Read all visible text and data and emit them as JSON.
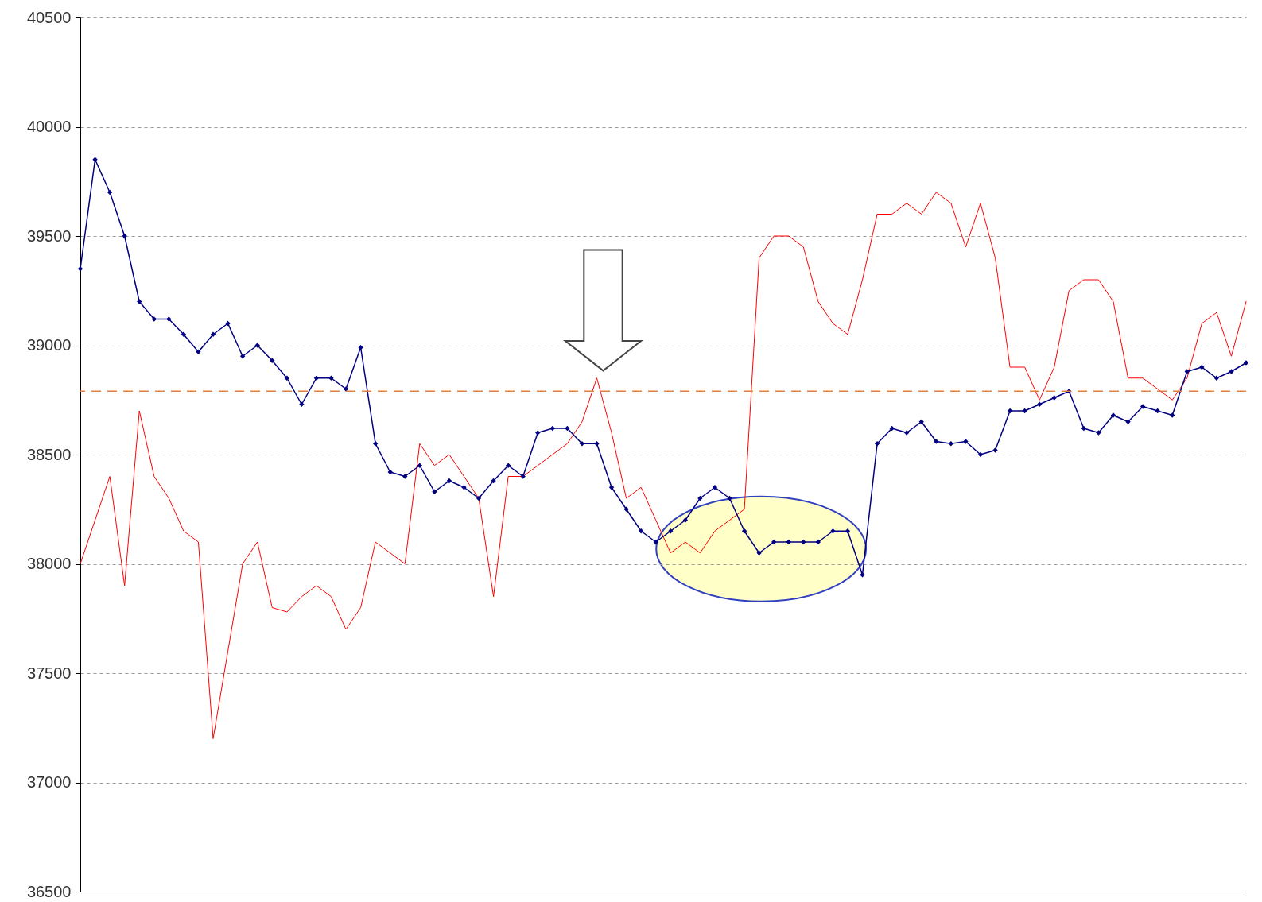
{
  "chart_data": {
    "type": "line",
    "categories": [
      null,
      null,
      null,
      null,
      null,
      null,
      null,
      null,
      null,
      null,
      null,
      null,
      null,
      null,
      null,
      null,
      null,
      null,
      null,
      null,
      null,
      null,
      null,
      null,
      null,
      null,
      null,
      null,
      null,
      null,
      null,
      null,
      null,
      null,
      null,
      null,
      null,
      null,
      null,
      null,
      null,
      null,
      null,
      null,
      null,
      null,
      null,
      null,
      null,
      null,
      null,
      null,
      null,
      null,
      null,
      null,
      null,
      null,
      null,
      null,
      null,
      null,
      null,
      null,
      null,
      null,
      null,
      null,
      null,
      null,
      null,
      null,
      null,
      null,
      null,
      null,
      null,
      null,
      null,
      null
    ],
    "series": [
      {
        "color": "#ff0000",
        "marker": "none",
        "values": [
          38000,
          38200,
          38400,
          37900,
          38700,
          38400,
          38300,
          38150,
          38100,
          37200,
          37600,
          38000,
          38100,
          37800,
          37780,
          37850,
          37900,
          37850,
          37700,
          37800,
          38100,
          38050,
          38000,
          38550,
          38450,
          38500,
          38400,
          38300,
          37850,
          38400,
          38400,
          38450,
          38500,
          38550,
          38650,
          38850,
          38600,
          38300,
          38350,
          38200,
          38050,
          38100,
          38050,
          38150,
          38200,
          38250,
          39400,
          39500,
          39500,
          39450,
          39200,
          39100,
          39050,
          39300,
          39600,
          39600,
          39650,
          39600,
          39700,
          39650,
          39450,
          39650,
          39400,
          38900,
          38900,
          38750,
          38900,
          39250,
          39300,
          39300,
          39200,
          38850,
          38850,
          38800,
          38750,
          38850,
          39100,
          39150,
          38950,
          39200
        ]
      },
      {
        "color": "#000080",
        "marker": "diamond",
        "values": [
          39350,
          39850,
          39700,
          39500,
          39200,
          39120,
          39120,
          39050,
          38970,
          39050,
          39100,
          38950,
          39000,
          38930,
          38850,
          38730,
          38850,
          38850,
          38800,
          38990,
          38550,
          38420,
          38400,
          38450,
          38330,
          38380,
          38350,
          38300,
          38380,
          38450,
          38400,
          38600,
          38620,
          38620,
          38550,
          38550,
          38350,
          38250,
          38150,
          38100,
          38150,
          38200,
          38300,
          38350,
          38300,
          38150,
          38050,
          38100,
          38100,
          38100,
          38100,
          38150,
          38150,
          37950,
          38550,
          38620,
          38600,
          38650,
          38560,
          38550,
          38560,
          38500,
          38520,
          38700,
          38700,
          38730,
          38760,
          38790,
          38620,
          38600,
          38680,
          38650,
          38720,
          38700,
          38680,
          38880,
          38900,
          38850,
          38880,
          38920
        ]
      }
    ],
    "ylim": [
      36500,
      40500
    ],
    "yticks": [
      36500,
      37000,
      37500,
      38000,
      38500,
      39000,
      39500,
      40000,
      40500
    ],
    "grid": "y",
    "tick_labels": "y",
    "line_style": "solid",
    "ref_lines": [
      {
        "axis": "y",
        "value": 38790,
        "color": "#e08040",
        "line_style": "dashed"
      }
    ]
  }
}
